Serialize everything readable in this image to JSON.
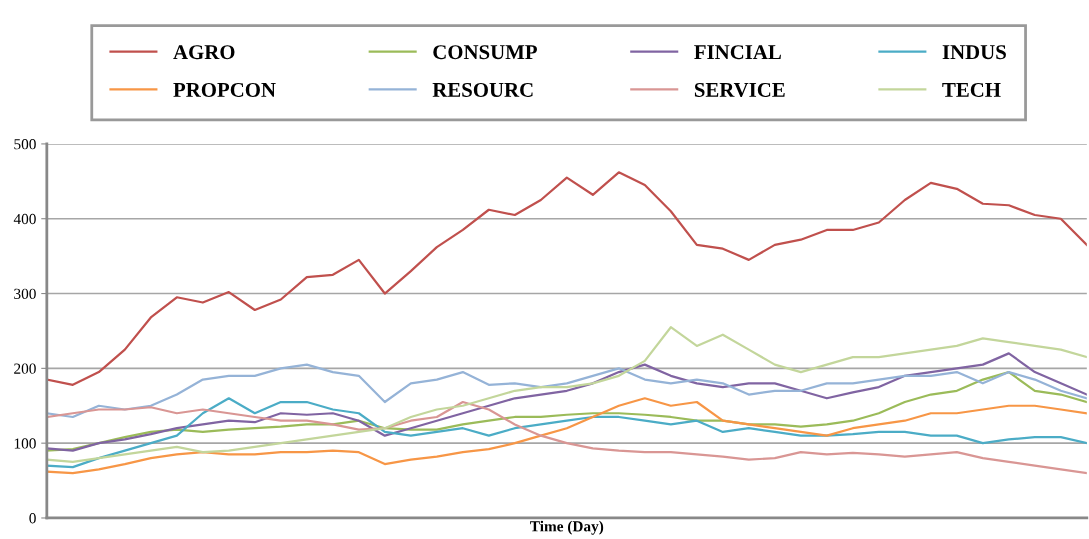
{
  "chart_data": {
    "type": "line",
    "xlabel": "Time (Day)",
    "categories": [
      null,
      null,
      null,
      null,
      null,
      null,
      null,
      null,
      null,
      null,
      null,
      null,
      null,
      null,
      null,
      null,
      null,
      null,
      null,
      null,
      null,
      null,
      null,
      null,
      null,
      null,
      null,
      null,
      null,
      null,
      null,
      null,
      null,
      null,
      null,
      null,
      null,
      null,
      null,
      null,
      null
    ],
    "ylim": [
      0,
      500
    ],
    "yticks": [
      0,
      100,
      200,
      300,
      400,
      500
    ],
    "grid": "y",
    "legend": "top",
    "tick_labels": "y",
    "marker": "none",
    "line_style": "solid",
    "series": [
      {
        "name": "AGRO",
        "color": "#c0504d",
        "values": [
          185,
          178,
          195,
          225,
          268,
          295,
          288,
          302,
          278,
          292,
          322,
          325,
          345,
          300,
          330,
          362,
          385,
          412,
          405,
          425,
          455,
          432,
          462,
          445,
          410,
          365,
          360,
          345,
          365,
          372,
          385,
          385,
          395,
          425,
          448,
          440,
          420,
          418,
          405,
          400,
          365
        ]
      },
      {
        "name": "CONSUMP",
        "color": "#9bbb59",
        "values": [
          90,
          92,
          100,
          108,
          115,
          118,
          115,
          118,
          120,
          122,
          125,
          125,
          130,
          120,
          118,
          118,
          125,
          130,
          135,
          135,
          138,
          140,
          140,
          138,
          135,
          130,
          130,
          125,
          125,
          122,
          125,
          130,
          140,
          155,
          165,
          170,
          185,
          195,
          170,
          165,
          155
        ]
      },
      {
        "name": "FINCIAL",
        "color": "#8064a2",
        "values": [
          93,
          90,
          100,
          105,
          112,
          120,
          125,
          130,
          128,
          140,
          138,
          140,
          130,
          110,
          120,
          130,
          140,
          150,
          160,
          165,
          170,
          180,
          195,
          205,
          190,
          180,
          175,
          180,
          180,
          170,
          160,
          168,
          175,
          190,
          195,
          200,
          205,
          220,
          195,
          180,
          165
        ]
      },
      {
        "name": "INDUS",
        "color": "#4bacc6",
        "values": [
          70,
          68,
          80,
          90,
          100,
          110,
          140,
          160,
          140,
          155,
          155,
          145,
          140,
          115,
          110,
          115,
          120,
          110,
          120,
          125,
          130,
          135,
          135,
          130,
          125,
          130,
          115,
          120,
          115,
          110,
          110,
          112,
          115,
          115,
          110,
          110,
          100,
          105,
          108,
          108,
          100
        ]
      },
      {
        "name": "PROPCON",
        "color": "#f79646",
        "values": [
          62,
          60,
          65,
          72,
          80,
          85,
          88,
          85,
          85,
          88,
          88,
          90,
          88,
          72,
          78,
          82,
          88,
          92,
          100,
          110,
          120,
          135,
          150,
          160,
          150,
          155,
          130,
          125,
          120,
          115,
          110,
          120,
          125,
          130,
          140,
          140,
          145,
          150,
          150,
          145,
          140
        ]
      },
      {
        "name": "RESOURC",
        "color": "#95b3d7",
        "values": [
          140,
          135,
          150,
          145,
          150,
          165,
          185,
          190,
          190,
          200,
          205,
          195,
          190,
          155,
          180,
          185,
          195,
          178,
          180,
          175,
          180,
          190,
          200,
          185,
          180,
          185,
          180,
          165,
          170,
          170,
          180,
          180,
          185,
          190,
          190,
          195,
          180,
          195,
          185,
          170,
          160
        ]
      },
      {
        "name": "SERVICE",
        "color": "#d99694",
        "values": [
          135,
          140,
          145,
          145,
          148,
          140,
          145,
          140,
          135,
          130,
          130,
          125,
          118,
          120,
          130,
          135,
          155,
          145,
          125,
          110,
          100,
          93,
          90,
          88,
          88,
          85,
          82,
          78,
          80,
          88,
          85,
          87,
          85,
          82,
          85,
          88,
          80,
          75,
          70,
          65,
          60
        ]
      },
      {
        "name": "TECH",
        "color": "#c3d69b",
        "values": [
          78,
          75,
          80,
          85,
          90,
          95,
          88,
          90,
          95,
          100,
          105,
          110,
          115,
          120,
          135,
          145,
          150,
          160,
          170,
          175,
          175,
          180,
          190,
          210,
          255,
          230,
          245,
          225,
          205,
          195,
          205,
          215,
          215,
          220,
          225,
          230,
          240,
          235,
          230,
          225,
          215
        ]
      }
    ]
  }
}
